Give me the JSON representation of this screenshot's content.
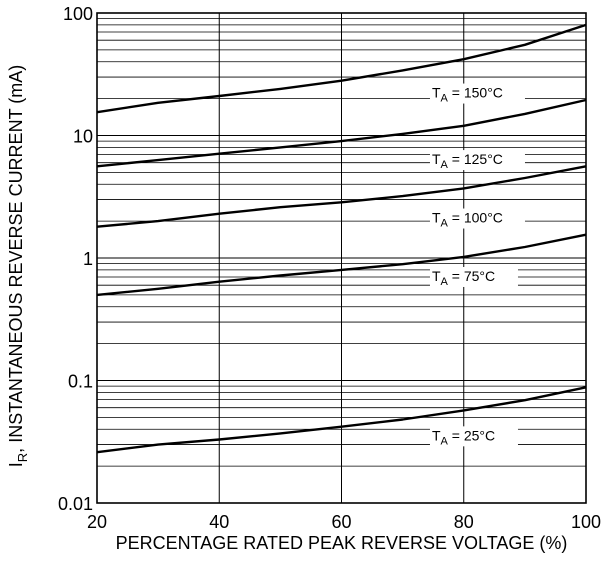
{
  "chart_data": {
    "type": "line",
    "xlabel": "PERCENTAGE RATED PEAK REVERSE VOLTAGE (%)",
    "ylabel_main": "I",
    "ylabel_sub": "R",
    "ylabel_rest": ", INSTANTANEOUS REVERSE CURRENT (mA)",
    "xlim": [
      20,
      100
    ],
    "ylim": [
      0.01,
      100
    ],
    "yscale": "log",
    "grid": true,
    "x_ticks": [
      "20",
      "40",
      "60",
      "80",
      "100"
    ],
    "y_ticks": [
      "0.01",
      "0.1",
      "1",
      "10",
      "100"
    ],
    "x": [
      20,
      30,
      40,
      50,
      60,
      70,
      80,
      90,
      100
    ],
    "series": [
      {
        "name": "150°C",
        "label_main": "T",
        "label_sub": "A",
        "label_rest": " = 150°C",
        "label_at": [
          82,
          22
        ],
        "values": [
          15.5,
          18.5,
          21,
          24,
          28,
          34,
          42,
          55,
          80
        ]
      },
      {
        "name": "125°C",
        "label_main": "T",
        "label_sub": "A",
        "label_rest": " = 125°C",
        "label_at": [
          82,
          6.3
        ],
        "values": [
          5.6,
          6.3,
          7.1,
          8,
          9,
          10.3,
          12,
          15,
          19.5
        ]
      },
      {
        "name": "100°C",
        "label_main": "T",
        "label_sub": "A",
        "label_rest": " = 100°C",
        "label_at": [
          82,
          2.1
        ],
        "values": [
          1.8,
          2.0,
          2.3,
          2.6,
          2.85,
          3.2,
          3.7,
          4.5,
          5.6
        ]
      },
      {
        "name": "75°C",
        "label_main": "T",
        "label_sub": "A",
        "label_rest": " = 75°C",
        "label_at": [
          82,
          0.7
        ],
        "values": [
          0.5,
          0.56,
          0.64,
          0.72,
          0.8,
          0.89,
          1.02,
          1.23,
          1.55
        ]
      },
      {
        "name": "25°C",
        "label_main": "T",
        "label_sub": "A",
        "label_rest": " = 25°C",
        "label_at": [
          82,
          0.035
        ],
        "values": [
          0.026,
          0.03,
          0.033,
          0.037,
          0.042,
          0.048,
          0.057,
          0.069,
          0.088
        ]
      }
    ]
  }
}
